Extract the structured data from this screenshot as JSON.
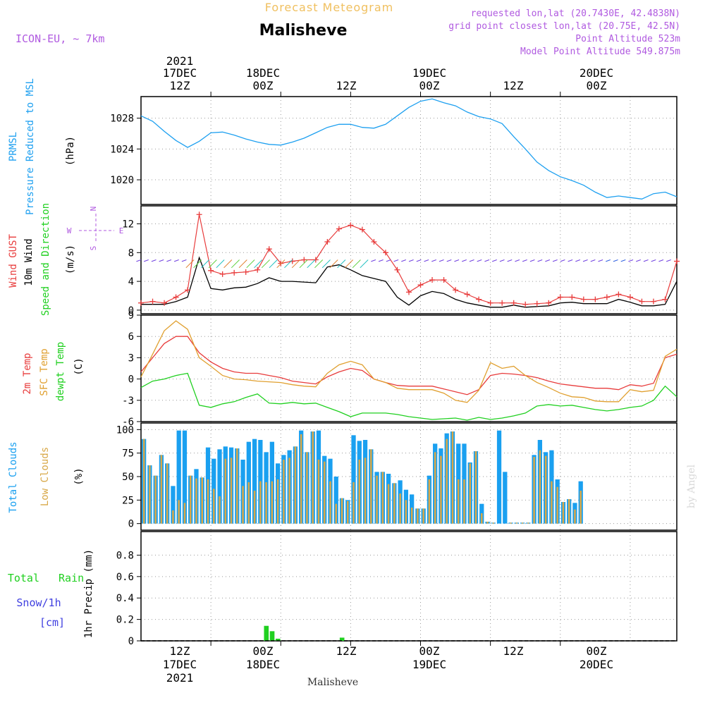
{
  "header": {
    "forecast_label": "Forecast Meteogram",
    "location": "Malisheve",
    "model": "ICON-EU, ~ 7km",
    "requested": "requested lon,lat (20.7430E, 42.4838N)",
    "grid_point": "grid point closest lon,lat (20.75E, 42.5N)",
    "point_altitude": "Point Altitude 523m",
    "model_altitude": "Model Point Altitude 549.875m",
    "footer_location": "Malisheve",
    "watermark": "by Angel"
  },
  "colors": {
    "pressure": "#1ea0f0",
    "gust": "#e83c3c",
    "wind": "#000000",
    "temp2m": "#e83c3c",
    "sfc": "#e0a030",
    "dewpt": "#20d020",
    "total_clouds": "#1aa0f0",
    "low_clouds": "#d8a848",
    "rain": "#20d020",
    "snow": "#4040e0",
    "header_purple": "#b05ae0",
    "header_orange": "#f0c060"
  },
  "time_axis": {
    "top_labels": [
      {
        "line1": "2021",
        "line2": "17DEC",
        "line3": "12Z",
        "h": 12
      },
      {
        "line1": "",
        "line2": "18DEC",
        "line3": "00Z",
        "h": 24
      },
      {
        "line1": "",
        "line2": "",
        "line3": "12Z",
        "h": 36
      },
      {
        "line1": "",
        "line2": "19DEC",
        "line3": "00Z",
        "h": 48
      },
      {
        "line1": "",
        "line2": "",
        "line3": "12Z",
        "h": 60
      },
      {
        "line1": "",
        "line2": "20DEC",
        "line3": "00Z",
        "h": 72
      }
    ],
    "bottom_labels": [
      {
        "line1": "12Z",
        "line2": "17DEC",
        "line3": "2021",
        "h": 12
      },
      {
        "line1": "00Z",
        "line2": "18DEC",
        "line3": "",
        "h": 24
      },
      {
        "line1": "12Z",
        "line2": "",
        "line3": "",
        "h": 36
      },
      {
        "line1": "00Z",
        "line2": "19DEC",
        "line3": "",
        "h": 48
      },
      {
        "line1": "12Z",
        "line2": "",
        "line3": "",
        "h": 60
      },
      {
        "line1": "00Z",
        "line2": "20DEC",
        "line3": "",
        "h": 72
      }
    ]
  },
  "panels": {
    "pressure": {
      "labels": [
        "PRMSL",
        "Pressure Reduced to MSL"
      ],
      "unit": "(hPa)",
      "ticks": [
        "1020",
        "1024",
        "1028"
      ]
    },
    "wind": {
      "labels": [
        "Wind GUST",
        "10m Wind",
        "Speed and Direction"
      ],
      "unit": "(m/s)",
      "ticks": [
        "0",
        "4",
        "8",
        "12"
      ],
      "compass": {
        "n": "N",
        "s": "S",
        "w": "W",
        "e": "E"
      }
    },
    "temp": {
      "labels": [
        "2m Temp",
        "SFC Temp",
        "dewpt Temp"
      ],
      "unit": "(C)",
      "ticks": [
        "-6",
        "-3",
        "0",
        "3",
        "6",
        "9"
      ]
    },
    "clouds": {
      "labels": [
        "Total Clouds",
        "Low Clouds"
      ],
      "unit": "(%)",
      "ticks": [
        "0",
        "25",
        "50",
        "75",
        "100"
      ]
    },
    "precip": {
      "labels": [
        "Total Rain",
        "Snow/1h",
        "[cm]"
      ],
      "unit": "1hr Precip (mm)",
      "ticks": [
        "0",
        "0.2",
        "0.4",
        "0.6",
        "0.8"
      ]
    }
  },
  "chart_data": [
    {
      "type": "line",
      "title": "PRMSL Pressure Reduced to MSL",
      "ylabel": "(hPa)",
      "ylim": [
        1016.8,
        1030.8
      ],
      "x_hours": [
        0,
        2,
        4,
        6,
        8,
        10,
        12,
        14,
        16,
        18,
        20,
        22,
        24,
        26,
        28,
        30,
        32,
        34,
        36,
        38,
        40,
        42,
        44,
        46,
        48,
        50,
        52,
        54,
        56,
        58,
        60,
        62,
        64,
        66,
        68,
        70,
        72,
        74,
        76,
        78,
        80,
        82,
        84,
        86,
        88,
        90,
        92
      ],
      "series": [
        {
          "name": "PRMSL",
          "values": [
            1028.3,
            1027.6,
            1026.3,
            1025.1,
            1024.2,
            1025.0,
            1026.1,
            1026.2,
            1025.8,
            1025.3,
            1024.9,
            1024.6,
            1024.5,
            1024.9,
            1025.4,
            1026.1,
            1026.8,
            1027.2,
            1027.2,
            1026.8,
            1026.7,
            1027.2,
            1028.3,
            1029.4,
            1030.2,
            1030.5,
            1030.0,
            1029.6,
            1028.8,
            1028.2,
            1027.9,
            1027.3,
            1025.6,
            1024.0,
            1022.3,
            1021.2,
            1020.4,
            1019.9,
            1019.3,
            1018.4,
            1017.7,
            1017.9,
            1017.7,
            1017.5,
            1018.2,
            1018.4,
            1017.8
          ]
        }
      ]
    },
    {
      "type": "line",
      "title": "Wind GUST / 10m Wind",
      "ylabel": "(m/s)",
      "ylim": [
        -0.5,
        14.5
      ],
      "x_hours": [
        0,
        2,
        4,
        6,
        8,
        10,
        12,
        14,
        16,
        18,
        20,
        22,
        24,
        26,
        28,
        30,
        32,
        34,
        36,
        38,
        40,
        42,
        44,
        46,
        48,
        50,
        52,
        54,
        56,
        58,
        60,
        62,
        64,
        66,
        68,
        70,
        72,
        74,
        76,
        78,
        80,
        82,
        84,
        86,
        88,
        90,
        92
      ],
      "series": [
        {
          "name": "Wind GUST",
          "values": [
            1.0,
            1.2,
            1.0,
            1.8,
            2.8,
            13.3,
            5.5,
            5.0,
            5.2,
            5.3,
            5.6,
            8.5,
            6.5,
            6.8,
            7.0,
            7.0,
            9.5,
            11.3,
            11.8,
            11.2,
            9.5,
            8.0,
            5.6,
            2.5,
            3.5,
            4.2,
            4.2,
            2.8,
            2.2,
            1.5,
            1.0,
            1.0,
            1.0,
            0.8,
            0.9,
            1.0,
            1.8,
            1.8,
            1.5,
            1.5,
            1.8,
            2.2,
            1.8,
            1.2,
            1.2,
            1.5,
            6.8
          ]
        },
        {
          "name": "10m Wind",
          "values": [
            0.8,
            0.8,
            0.8,
            1.2,
            1.8,
            7.3,
            3.0,
            2.8,
            3.1,
            3.2,
            3.7,
            4.5,
            4.0,
            4.0,
            3.9,
            3.8,
            6.0,
            6.3,
            5.6,
            4.8,
            4.4,
            4.0,
            1.8,
            0.7,
            2.0,
            2.6,
            2.3,
            1.5,
            1.0,
            0.7,
            0.4,
            0.4,
            0.7,
            0.4,
            0.5,
            0.6,
            1.0,
            1.1,
            0.9,
            0.9,
            0.9,
            1.5,
            1.1,
            0.6,
            0.6,
            0.8,
            4.0
          ]
        }
      ]
    },
    {
      "type": "line",
      "title": "2m Temp / SFC Temp / dewpt Temp",
      "ylabel": "(C)",
      "ylim": [
        -6,
        9
      ],
      "x_hours": [
        0,
        2,
        4,
        6,
        8,
        10,
        12,
        14,
        16,
        18,
        20,
        22,
        24,
        26,
        28,
        30,
        32,
        34,
        36,
        38,
        40,
        42,
        44,
        46,
        48,
        50,
        52,
        54,
        56,
        58,
        60,
        62,
        64,
        66,
        68,
        70,
        72,
        74,
        76,
        78,
        80,
        82,
        84,
        86,
        88,
        90,
        92
      ],
      "series": [
        {
          "name": "2m Temp",
          "values": [
            1.0,
            3.0,
            5.0,
            6.0,
            6.0,
            3.7,
            2.4,
            1.5,
            1.0,
            0.8,
            0.8,
            0.5,
            0.2,
            -0.3,
            -0.5,
            -0.7,
            0.3,
            1.0,
            1.5,
            1.2,
            0.0,
            -0.5,
            -0.9,
            -1.0,
            -1.0,
            -1.0,
            -1.4,
            -1.8,
            -2.2,
            -1.5,
            0.5,
            0.8,
            0.7,
            0.5,
            0.2,
            -0.3,
            -0.7,
            -0.9,
            -1.1,
            -1.3,
            -1.3,
            -1.5,
            -0.8,
            -1.0,
            -0.6,
            3.0,
            3.5
          ]
        },
        {
          "name": "SFC Temp",
          "values": [
            0.3,
            3.5,
            6.8,
            8.2,
            7.0,
            3.0,
            1.8,
            0.5,
            0.0,
            -0.1,
            -0.3,
            -0.4,
            -0.5,
            -0.8,
            -1.0,
            -1.1,
            0.8,
            2.0,
            2.5,
            2.0,
            0.0,
            -0.5,
            -1.3,
            -1.5,
            -1.5,
            -1.5,
            -2.0,
            -3.0,
            -3.3,
            -1.6,
            2.3,
            1.5,
            1.8,
            0.5,
            -0.5,
            -1.2,
            -2.0,
            -2.5,
            -2.6,
            -3.1,
            -3.2,
            -3.2,
            -1.5,
            -1.8,
            -1.6,
            3.2,
            4.2
          ]
        },
        {
          "name": "dewpt Temp",
          "values": [
            -1.2,
            -0.3,
            0.0,
            0.5,
            0.8,
            -3.7,
            -4.0,
            -3.5,
            -3.2,
            -2.6,
            -2.1,
            -3.4,
            -3.5,
            -3.3,
            -3.5,
            -3.4,
            -4.0,
            -4.6,
            -5.3,
            -4.8,
            -4.8,
            -4.8,
            -5.0,
            -5.3,
            -5.5,
            -5.7,
            -5.6,
            -5.5,
            -5.8,
            -5.4,
            -5.7,
            -5.5,
            -5.2,
            -4.8,
            -3.8,
            -3.6,
            -3.8,
            -3.7,
            -4.0,
            -4.3,
            -4.5,
            -4.3,
            -4.0,
            -3.8,
            -3.0,
            -1.0,
            -2.5
          ]
        }
      ]
    },
    {
      "type": "bar",
      "title": "Total Clouds / Low Clouds",
      "ylabel": "(%)",
      "ylim": [
        0,
        100
      ],
      "x_hours": [
        0,
        1,
        2,
        3,
        4,
        5,
        6,
        7,
        8,
        9,
        10,
        11,
        12,
        13,
        14,
        15,
        16,
        17,
        18,
        19,
        20,
        21,
        22,
        23,
        24,
        25,
        26,
        27,
        28,
        29,
        30,
        31,
        32,
        33,
        34,
        35,
        36,
        37,
        38,
        39,
        40,
        41,
        42,
        43,
        44,
        45,
        46,
        47,
        48,
        49,
        50,
        51,
        52,
        53,
        54,
        55,
        56,
        57,
        58,
        59,
        60,
        61,
        62,
        63,
        64,
        65,
        66,
        67,
        68,
        69,
        70,
        71,
        72,
        73,
        74,
        75,
        76,
        77,
        78,
        79,
        80,
        81,
        82,
        83,
        84,
        85,
        86,
        87,
        88,
        89,
        90,
        91,
        92
      ],
      "series": [
        {
          "name": "Total Clouds",
          "values": [
            90,
            62,
            51,
            73,
            64,
            40,
            99,
            99,
            51,
            58,
            49,
            81,
            69,
            79,
            82,
            81,
            80,
            68,
            87,
            90,
            89,
            76,
            87,
            64,
            73,
            78,
            82,
            99,
            76,
            98,
            99,
            72,
            69,
            50,
            27,
            25,
            94,
            88,
            89,
            79,
            55,
            55,
            53,
            43,
            46,
            36,
            31,
            16,
            16,
            51,
            85,
            80,
            96,
            98,
            85,
            85,
            65,
            77,
            21,
            2,
            1,
            99,
            55,
            1,
            1,
            1,
            1,
            73,
            89,
            76,
            78,
            47,
            23,
            26,
            22,
            45
          ],
          "x_hours": [
            0,
            1,
            2,
            3,
            4,
            5,
            6,
            7,
            8,
            9,
            10,
            11,
            12,
            13,
            14,
            15,
            16,
            17,
            18,
            19,
            20,
            21,
            22,
            23,
            24,
            25,
            26,
            27,
            28,
            29,
            30,
            31,
            32,
            33,
            34,
            35,
            36,
            37,
            38,
            39,
            40,
            41,
            42,
            43,
            44,
            45,
            46,
            47,
            48,
            49,
            50,
            51,
            52,
            53,
            54,
            55,
            56,
            57,
            58,
            59,
            60,
            61,
            62,
            63,
            64,
            65,
            66,
            67,
            68,
            69,
            70,
            71,
            72,
            73,
            74,
            75
          ]
        },
        {
          "name": "Low Clouds",
          "values": [
            90,
            62,
            51,
            73,
            64,
            14,
            25,
            22,
            51,
            48,
            49,
            47,
            37,
            29,
            69,
            70,
            80,
            40,
            44,
            35,
            45,
            44,
            45,
            47,
            68,
            70,
            82,
            95,
            76,
            98,
            68,
            66,
            45,
            21,
            27,
            24,
            44,
            68,
            70,
            79,
            51,
            55,
            42,
            43,
            32,
            25,
            17,
            16,
            16,
            47,
            76,
            72,
            90,
            98,
            47,
            47,
            64,
            77,
            11,
            2,
            1,
            0,
            0,
            1,
            1,
            1,
            1,
            71,
            78,
            72,
            45,
            39,
            23,
            26,
            15,
            35
          ],
          "x_hours": [
            0,
            1,
            2,
            3,
            4,
            5,
            6,
            7,
            8,
            9,
            10,
            11,
            12,
            13,
            14,
            15,
            16,
            17,
            18,
            19,
            20,
            21,
            22,
            23,
            24,
            25,
            26,
            27,
            28,
            29,
            30,
            31,
            32,
            33,
            34,
            35,
            36,
            37,
            38,
            39,
            40,
            41,
            42,
            43,
            44,
            45,
            46,
            47,
            48,
            49,
            50,
            51,
            52,
            53,
            54,
            55,
            56,
            57,
            58,
            59,
            60,
            61,
            62,
            63,
            64,
            65,
            66,
            67,
            68,
            69,
            70,
            71,
            72,
            73,
            74,
            75
          ]
        }
      ]
    },
    {
      "type": "bar",
      "title": "Total Rain / Snow",
      "ylabel": "1hr Precip (mm)",
      "ylim": [
        0,
        1
      ],
      "series": [
        {
          "name": "Total Rain",
          "x_hours": [
            21,
            22,
            23,
            34
          ],
          "values": [
            0.14,
            0.09,
            0.02,
            0.03
          ]
        }
      ]
    }
  ]
}
